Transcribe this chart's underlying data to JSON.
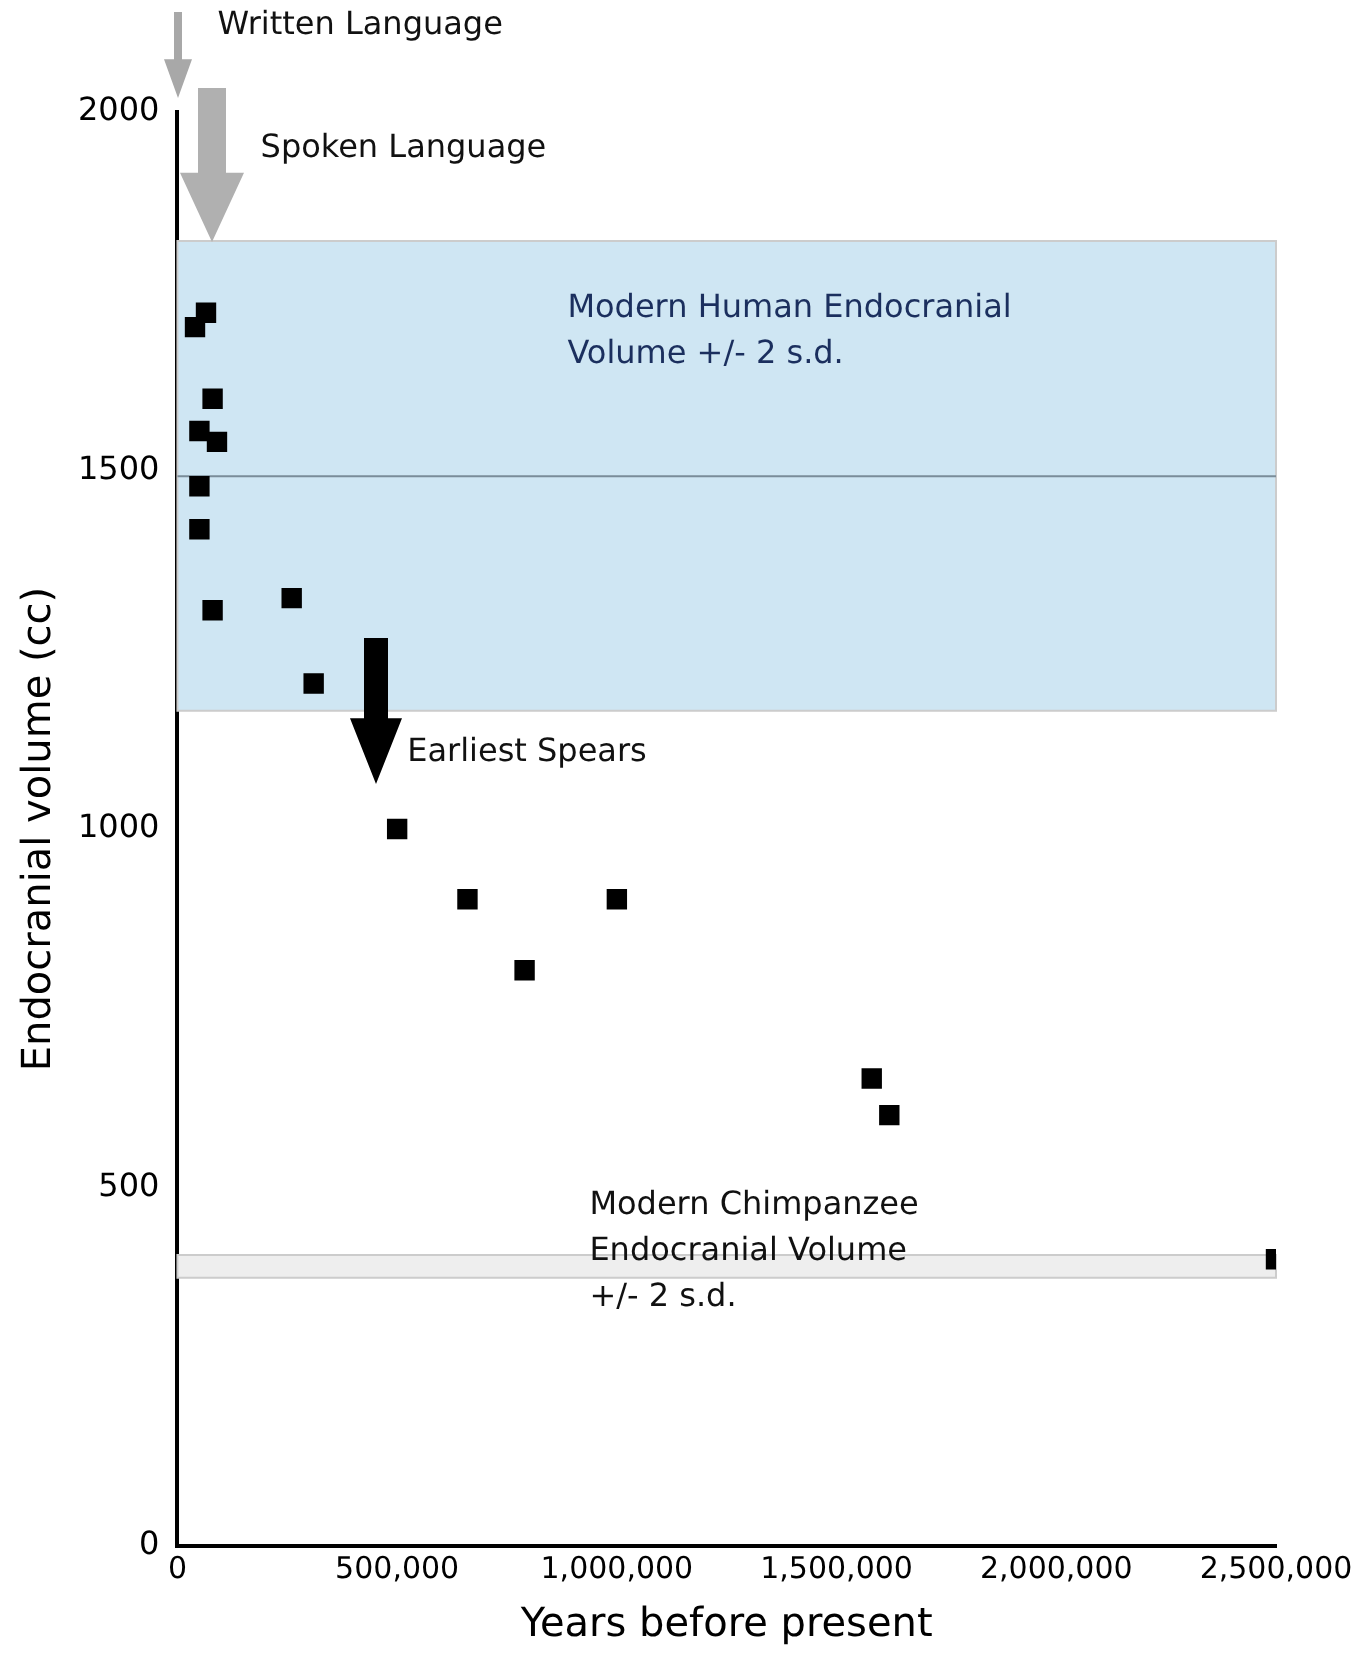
{
  "chart_data": {
    "type": "scatter",
    "xlabel": "Years before present",
    "ylabel": "Endocranial volume (cc)",
    "x": [
      65000,
      40000,
      80000,
      50000,
      90000,
      50000,
      50000,
      80000,
      260000,
      310000,
      500000,
      660000,
      790000,
      1000000,
      1580000,
      1620000,
      2500000
    ],
    "series": [
      {
        "color": "#000000",
        "values": [
          1720,
          1700,
          1600,
          1555,
          1540,
          1478,
          1418,
          1305,
          1322,
          1203,
          1000,
          902,
          803,
          902,
          652,
          601,
          400
        ]
      }
    ],
    "xlim": [
      0,
      2500000
    ],
    "xticks": [
      {
        "value": 0,
        "label": "0"
      },
      {
        "value": 500000,
        "label": "500,000"
      },
      {
        "value": 1000000,
        "label": "1,000,000"
      },
      {
        "value": 1500000,
        "label": "1,500,000"
      },
      {
        "value": 2000000,
        "label": "2,000,000"
      },
      {
        "value": 2500000,
        "label": "2,500,000"
      }
    ],
    "ylim": [
      0,
      2000
    ],
    "yticks": [
      0,
      500,
      1000,
      1500,
      2000
    ],
    "bands": [
      {
        "axis": "y",
        "from": 1165,
        "to": 1820,
        "label": "Modern Human Endocranial\nVolume +/- 2 s.d.",
        "color": "#cfe6f3"
      },
      {
        "axis": "y",
        "from": 374,
        "to": 406,
        "label": "Modern Chimpanzee\nEndocranial Volume\n+/- 2 s.d.",
        "color": "#eeeeee"
      }
    ],
    "ref_lines": [
      {
        "axis": "y",
        "value": 1492,
        "color": "#7a8c99"
      }
    ],
    "annotations": [
      "Written Language",
      {
        "text": "Spoken Language",
        "x": 80000,
        "y": 1820
      },
      "Earliest Spears"
    ],
    "marker": "square",
    "grid": false,
    "legend": false
  }
}
